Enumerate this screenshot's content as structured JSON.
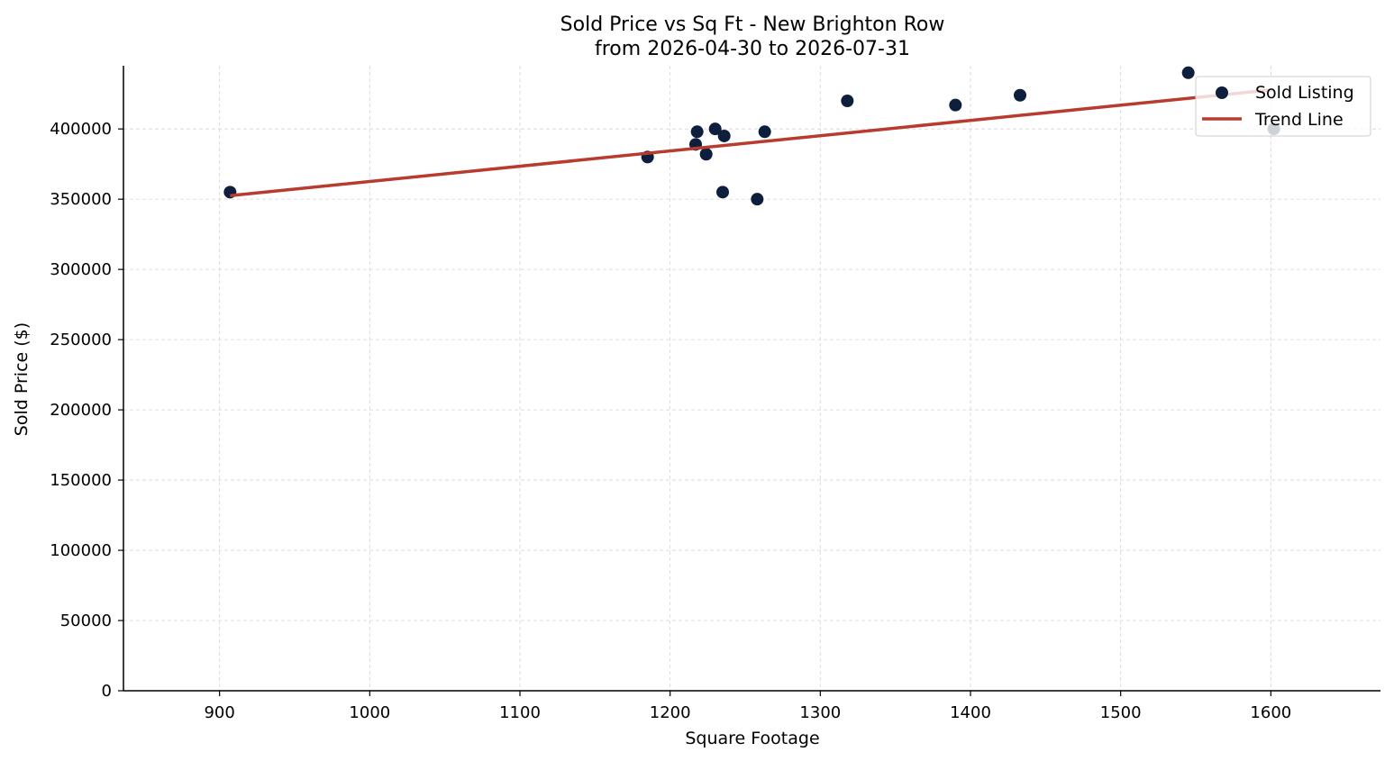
{
  "chart_data": {
    "type": "scatter",
    "title": "Sold Price vs Sq Ft - New Brighton Row",
    "subtitle": "from 2026-04-30 to 2026-07-31",
    "xlabel": "Square Footage",
    "ylabel": "Sold Price ($)",
    "xlim": [
      836,
      1673
    ],
    "ylim": [
      0,
      445000
    ],
    "xticks": [
      900,
      1000,
      1100,
      1200,
      1300,
      1400,
      1500,
      1600
    ],
    "yticks": [
      0,
      50000,
      100000,
      150000,
      200000,
      250000,
      300000,
      350000,
      400000
    ],
    "grid": true,
    "legend_position": "top-right",
    "series": [
      {
        "name": "Sold Listing",
        "kind": "scatter",
        "color": "#0d1f3c",
        "points": [
          {
            "x": 907,
            "y": 355000
          },
          {
            "x": 1185,
            "y": 380000
          },
          {
            "x": 1217,
            "y": 389000
          },
          {
            "x": 1218,
            "y": 398000
          },
          {
            "x": 1224,
            "y": 382000
          },
          {
            "x": 1230,
            "y": 400000
          },
          {
            "x": 1235,
            "y": 355000
          },
          {
            "x": 1236,
            "y": 395000
          },
          {
            "x": 1258,
            "y": 350000
          },
          {
            "x": 1263,
            "y": 398000
          },
          {
            "x": 1318,
            "y": 420000
          },
          {
            "x": 1390,
            "y": 417000
          },
          {
            "x": 1433,
            "y": 424000
          },
          {
            "x": 1545,
            "y": 440000
          },
          {
            "x": 1602,
            "y": 400000
          }
        ]
      },
      {
        "name": "Trend Line",
        "kind": "line",
        "color": "#b83b2e",
        "points": [
          {
            "x": 907,
            "y": 352500
          },
          {
            "x": 1602,
            "y": 428000
          }
        ]
      }
    ]
  }
}
